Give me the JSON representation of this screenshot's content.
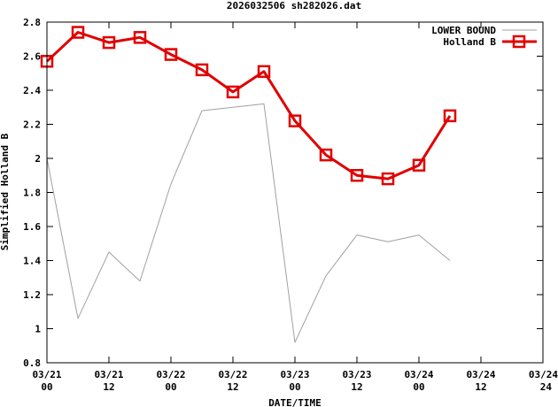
{
  "chart_data": {
    "type": "line",
    "title": "2026032506 sh282026.dat",
    "xlabel": "DATE/TIME",
    "ylabel": "Simplified Holland B",
    "ylim": [
      0.8,
      2.8
    ],
    "yticks": [
      0.8,
      1,
      1.2,
      1.4,
      1.6,
      1.8,
      2,
      2.2,
      2.4,
      2.6,
      2.8
    ],
    "ytick_labels": [
      "0.8",
      "1",
      "1.2",
      "1.4",
      "1.6",
      "1.8",
      "2",
      "2.2",
      "2.4",
      "2.6",
      "2.8"
    ],
    "xlim_hours": [
      0,
      96
    ],
    "xticks": [
      {
        "hours": 0,
        "date": "03/21",
        "time": "00"
      },
      {
        "hours": 12,
        "date": "03/21",
        "time": "12"
      },
      {
        "hours": 24,
        "date": "03/22",
        "time": "00"
      },
      {
        "hours": 36,
        "date": "03/22",
        "time": "12"
      },
      {
        "hours": 48,
        "date": "03/23",
        "time": "00"
      },
      {
        "hours": 60,
        "date": "03/23",
        "time": "12"
      },
      {
        "hours": 72,
        "date": "03/24",
        "time": "00"
      },
      {
        "hours": 84,
        "date": "03/24",
        "time": "12"
      },
      {
        "hours": 96,
        "date": "03/24",
        "time": "24"
      }
    ],
    "legend_position": "top-right",
    "series": [
      {
        "name": "LOWER BOUND",
        "color": "#a0a0a0",
        "x": [
          0,
          6,
          12,
          18,
          24,
          30,
          36,
          42,
          48,
          54,
          60,
          66,
          72,
          78
        ],
        "y": [
          2.0,
          1.06,
          1.45,
          1.28,
          1.85,
          2.28,
          2.3,
          2.32,
          0.92,
          1.31,
          1.55,
          1.51,
          1.55,
          1.4
        ]
      },
      {
        "name": "Holland B",
        "color": "#e00000",
        "marker": "square",
        "x": [
          0,
          6,
          12,
          18,
          24,
          30,
          36,
          42,
          48,
          54,
          60,
          66,
          72,
          78
        ],
        "y": [
          2.57,
          2.74,
          2.68,
          2.71,
          2.61,
          2.52,
          2.39,
          2.51,
          2.22,
          2.02,
          1.9,
          1.88,
          1.96,
          2.25
        ]
      }
    ]
  }
}
